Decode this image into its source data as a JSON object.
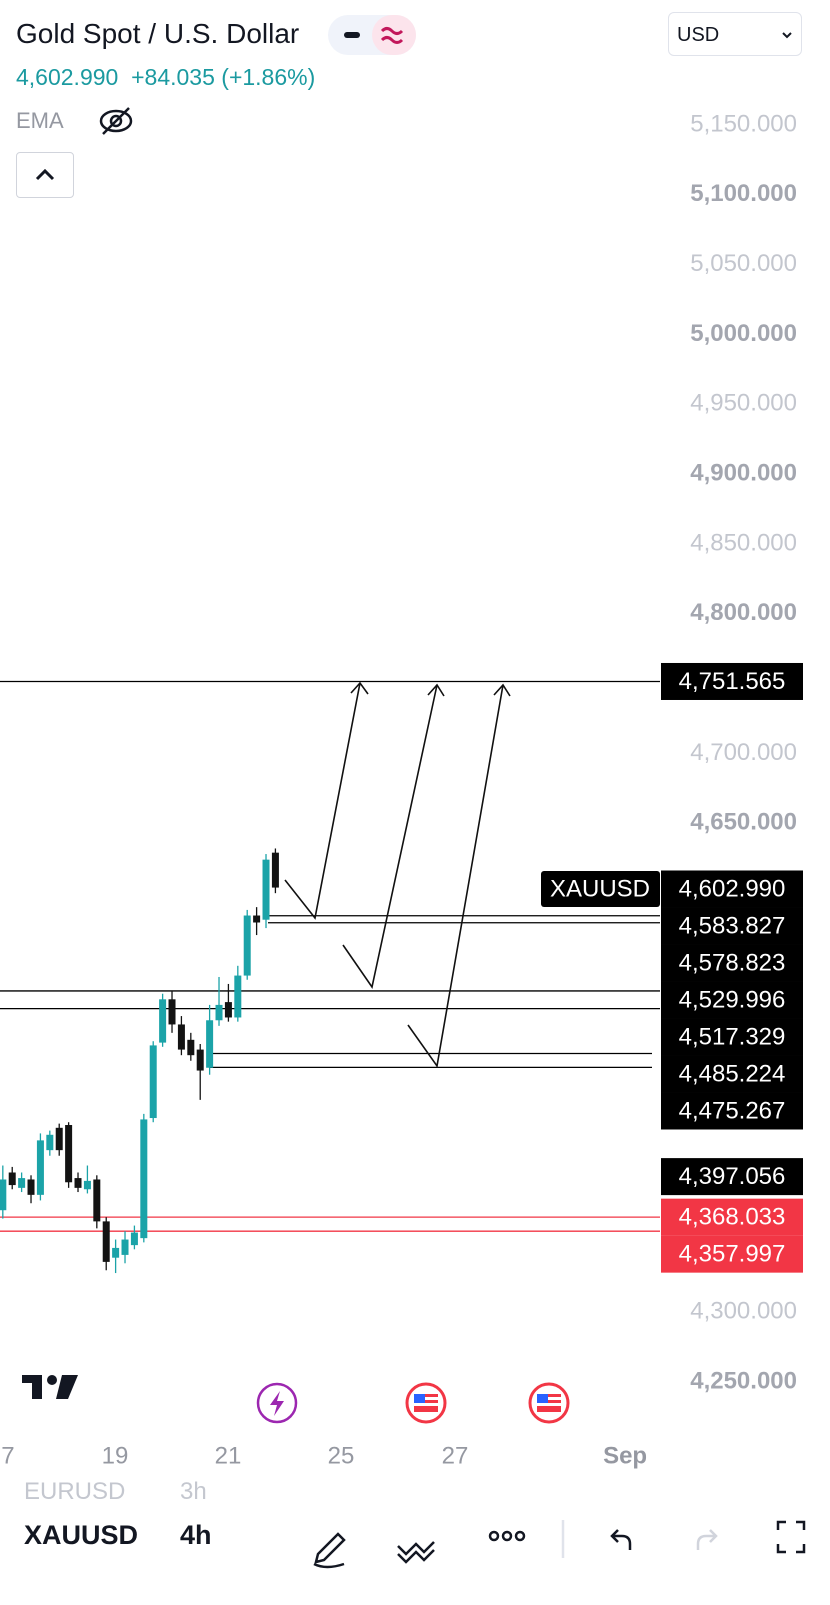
{
  "header": {
    "title": "Gold Spot / U.S. Dollar",
    "price": "4,602.990",
    "change": "+84.035 (+1.86%)",
    "indicator": "EMA",
    "currency": "USD"
  },
  "chart_data": {
    "type": "candlestick",
    "x": [
      0,
      1,
      2,
      3,
      4,
      5,
      6,
      7,
      8,
      9,
      10,
      11,
      12,
      13,
      14,
      15,
      16,
      17,
      18,
      19,
      20,
      21,
      22,
      23,
      24,
      25,
      26,
      27,
      28,
      29
    ],
    "open": [
      4373,
      4400,
      4389,
      4395,
      4384,
      4416,
      4432,
      4434,
      4396,
      4388,
      4395,
      4365,
      4339,
      4341,
      4348,
      4353,
      4439,
      4493,
      4524,
      4506,
      4495,
      4488,
      4475,
      4509,
      4522,
      4511,
      4541,
      4584,
      4581,
      4629
    ],
    "high": [
      4405,
      4404,
      4400,
      4398,
      4428,
      4430,
      4435,
      4436,
      4400,
      4405,
      4398,
      4368,
      4352,
      4358,
      4362,
      4442,
      4494,
      4528,
      4530,
      4512,
      4500,
      4492,
      4520,
      4540,
      4535,
      4548,
      4588,
      4590,
      4628,
      4632
    ],
    "low": [
      4367,
      4388,
      4386,
      4378,
      4380,
      4412,
      4412,
      4389,
      4386,
      4385,
      4360,
      4330,
      4328,
      4335,
      4345,
      4350,
      4436,
      4490,
      4500,
      4484,
      4480,
      4452,
      4470,
      4505,
      4508,
      4508,
      4538,
      4570,
      4575,
      4600
    ],
    "close": [
      4395,
      4391,
      4396,
      4384,
      4423,
      4427,
      4416,
      4393,
      4389,
      4394,
      4365,
      4336,
      4346,
      4352,
      4357,
      4438,
      4491,
      4524,
      4506,
      4488,
      4484,
      4473,
      4509,
      4520,
      4511,
      4541,
      4584,
      4579,
      4624,
      4604
    ],
    "up_color": "#1ba3a8",
    "down_color": "#131313",
    "xlim": [
      -0.3,
      88
    ],
    "xticks": [
      {
        "value": 0.55,
        "label": "7"
      },
      {
        "value": 11.93,
        "label": "19"
      },
      {
        "value": 23.96,
        "label": "21"
      },
      {
        "value": 35.98,
        "label": "25"
      },
      {
        "value": 48.1,
        "label": "27"
      },
      {
        "value": 66.2,
        "label": "Sep"
      }
    ],
    "ylim": [
      4250,
      5150
    ],
    "yticks": [
      {
        "value": 5150,
        "label": "5,150.000"
      },
      {
        "value": 5100,
        "label": "5,100.000"
      },
      {
        "value": 5050,
        "label": "5,050.000"
      },
      {
        "value": 5000,
        "label": "5,000.000"
      },
      {
        "value": 4950,
        "label": "4,950.000"
      },
      {
        "value": 4900,
        "label": "4,900.000"
      },
      {
        "value": 4850,
        "label": "4,850.000"
      },
      {
        "value": 4800,
        "label": "4,800.000"
      },
      {
        "value": 4700,
        "label": "4,700.000"
      },
      {
        "value": 4650,
        "label": "4,650.000"
      },
      {
        "value": 4300,
        "label": "4,300.000"
      },
      {
        "value": 4250,
        "label": "4,250.000"
      }
    ],
    "last_price": {
      "symbol": "XAUUSD",
      "value": 4602.99,
      "label": "4,602.990"
    },
    "levels": [
      {
        "value": 4751.565,
        "label": "4,751.565",
        "color": "#000000"
      },
      {
        "value": 4583.827,
        "label": "4,583.827",
        "color": "#000000"
      },
      {
        "value": 4578.823,
        "label": "4,578.823",
        "color": "#000000"
      },
      {
        "value": 4529.996,
        "label": "4,529.996",
        "color": "#000000"
      },
      {
        "value": 4517.329,
        "label": "4,517.329",
        "color": "#000000"
      },
      {
        "value": 4485.224,
        "label": "4,485.224",
        "color": "#000000"
      },
      {
        "value": 4475.267,
        "label": "4,475.267",
        "color": "#000000"
      },
      {
        "value": 4397.056,
        "label": "4,397.056",
        "color": "#000000"
      },
      {
        "value": 4368.033,
        "label": "4,368.033",
        "color": "#f23645"
      },
      {
        "value": 4357.997,
        "label": "4,357.997",
        "color": "#f23645"
      }
    ]
  },
  "panel": {
    "symbol": "EURUSD",
    "interval": "3h"
  },
  "toolbar": {
    "symbol": "XAUUSD",
    "interval": "4h"
  }
}
